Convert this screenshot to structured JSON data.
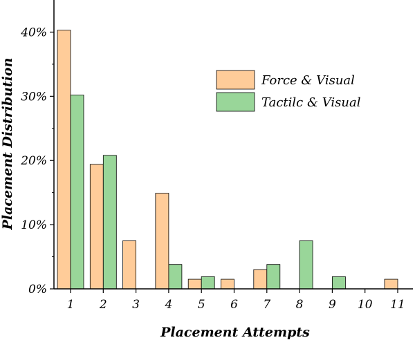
{
  "chart_data": {
    "type": "bar",
    "title": "",
    "xlabel": "Placement Attempts",
    "ylabel": "Placement Distribution",
    "categories": [
      "1",
      "2",
      "3",
      "4",
      "5",
      "6",
      "7",
      "8",
      "9",
      "10",
      "11"
    ],
    "yticks": [
      "0%",
      "10%",
      "20%",
      "30%",
      "40%"
    ],
    "ylim": [
      0,
      45
    ],
    "grid": false,
    "legend_position": "upper-right",
    "series": [
      {
        "name": "Force & Visual",
        "color": "#ffcc99",
        "values": [
          40.3,
          19.4,
          7.5,
          14.9,
          1.5,
          1.5,
          3.0,
          0,
          0,
          0,
          1.5
        ]
      },
      {
        "name": "Tactilc & Visual",
        "color": "#99d699",
        "values": [
          30.2,
          20.8,
          0,
          3.8,
          1.9,
          0,
          3.8,
          7.5,
          1.9,
          0,
          0
        ]
      }
    ]
  }
}
